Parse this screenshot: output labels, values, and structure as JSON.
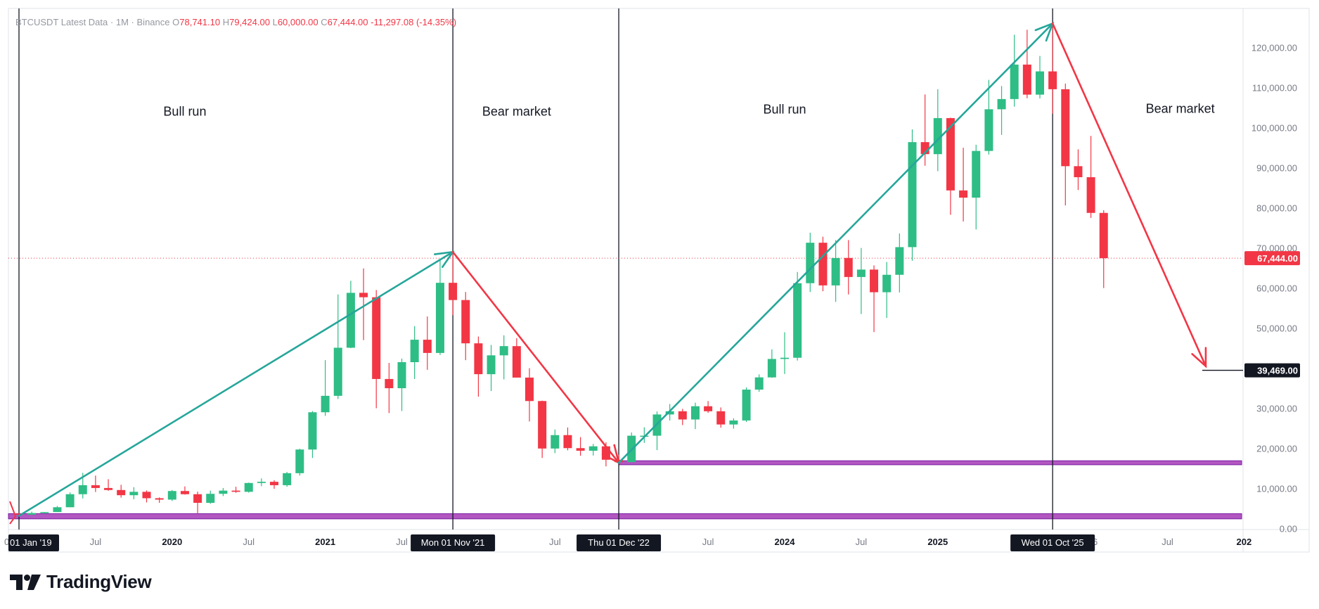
{
  "header": {
    "symbol": "BTCUSDT Latest Data",
    "separator": "·",
    "interval": "1M",
    "exchange": "Binance",
    "open_label": "O",
    "open": "78,741.10",
    "high_label": "H",
    "high": "79,424.00",
    "low_label": "L",
    "low": "60,000.00",
    "close_label": "C",
    "close": "67,444.00",
    "change": "-11,297.08 (-14.35%)"
  },
  "brand": {
    "name": "TradingView"
  },
  "colors": {
    "up": "#26a69a",
    "up_body": "#2ebd85",
    "down": "#f23645",
    "support": "#9c27b0",
    "grid": "#e0e3eb",
    "text": "#131722",
    "axis_text": "#787b86"
  },
  "chart_data": {
    "type": "candlestick",
    "interval": "monthly",
    "ylim": [
      0,
      130000
    ],
    "y_ticks": [
      0,
      10000,
      20000,
      30000,
      40000,
      50000,
      60000,
      70000,
      80000,
      90000,
      100000,
      110000,
      120000
    ],
    "y_tick_labels": [
      "0.00",
      "10,000.00",
      "20,000.00",
      "30,000.00",
      "40,000.00",
      "50,000.00",
      "60,000.00",
      "70,000.00",
      "80,000.00",
      "90,000.00",
      "100,000.00",
      "110,000.00",
      "120,000.00"
    ],
    "x_ticks": [
      {
        "month": "2019-01",
        "label": "01 Jan '19"
      },
      {
        "month": "2019-07",
        "label": "Jul"
      },
      {
        "month": "2020-01",
        "label": "2020"
      },
      {
        "month": "2020-07",
        "label": "Jul"
      },
      {
        "month": "2021-01",
        "label": "2021"
      },
      {
        "month": "2021-07",
        "label": "Jul"
      },
      {
        "month": "2022-07",
        "label": "Jul"
      },
      {
        "month": "2023-07",
        "label": "Jul"
      },
      {
        "month": "2024-01",
        "label": "2024"
      },
      {
        "month": "2024-07",
        "label": "Jul"
      },
      {
        "month": "2025-01",
        "label": "2025"
      },
      {
        "month": "2026-07",
        "label": "Jul"
      },
      {
        "month": "2027-01",
        "label": "202"
      }
    ],
    "x_highlight_labels": [
      {
        "month": "2021-11",
        "label": "Mon 01 Nov '21"
      },
      {
        "month": "2022-12",
        "label": "Thu 01 Dec '22"
      },
      {
        "month": "2025-10",
        "label": "Wed 01 Oct '25"
      }
    ],
    "x_partial_label": {
      "month": "2026-01",
      "label": "6"
    },
    "candles": [
      {
        "t": "2019-01",
        "o": 3700,
        "h": 3850,
        "l": 3350,
        "c": 3450
      },
      {
        "t": "2019-02",
        "o": 3450,
        "h": 4200,
        "l": 3400,
        "c": 3850
      },
      {
        "t": "2019-03",
        "o": 3850,
        "h": 4100,
        "l": 3700,
        "c": 4100
      },
      {
        "t": "2019-04",
        "o": 4100,
        "h": 5600,
        "l": 4100,
        "c": 5300
      },
      {
        "t": "2019-05",
        "o": 5300,
        "h": 9000,
        "l": 5300,
        "c": 8550
      },
      {
        "t": "2019-06",
        "o": 8550,
        "h": 13900,
        "l": 7500,
        "c": 10800
      },
      {
        "t": "2019-07",
        "o": 10800,
        "h": 13200,
        "l": 9100,
        "c": 10100
      },
      {
        "t": "2019-08",
        "o": 10100,
        "h": 12300,
        "l": 9400,
        "c": 9600
      },
      {
        "t": "2019-09",
        "o": 9600,
        "h": 10900,
        "l": 7700,
        "c": 8300
      },
      {
        "t": "2019-10",
        "o": 8300,
        "h": 10300,
        "l": 7300,
        "c": 9150
      },
      {
        "t": "2019-11",
        "o": 9150,
        "h": 9500,
        "l": 6500,
        "c": 7550
      },
      {
        "t": "2019-12",
        "o": 7550,
        "h": 7750,
        "l": 6400,
        "c": 7200
      },
      {
        "t": "2020-01",
        "o": 7200,
        "h": 9600,
        "l": 6850,
        "c": 9350
      },
      {
        "t": "2020-02",
        "o": 9350,
        "h": 10500,
        "l": 8450,
        "c": 8550
      },
      {
        "t": "2020-03",
        "o": 8550,
        "h": 9200,
        "l": 3800,
        "c": 6400
      },
      {
        "t": "2020-04",
        "o": 6400,
        "h": 9450,
        "l": 6150,
        "c": 8650
      },
      {
        "t": "2020-05",
        "o": 8650,
        "h": 10100,
        "l": 8100,
        "c": 9450
      },
      {
        "t": "2020-06",
        "o": 9450,
        "h": 10400,
        "l": 8900,
        "c": 9150
      },
      {
        "t": "2020-07",
        "o": 9150,
        "h": 11450,
        "l": 8950,
        "c": 11350
      },
      {
        "t": "2020-08",
        "o": 11350,
        "h": 12500,
        "l": 10550,
        "c": 11650
      },
      {
        "t": "2020-09",
        "o": 11650,
        "h": 12050,
        "l": 9900,
        "c": 10800
      },
      {
        "t": "2020-10",
        "o": 10800,
        "h": 14100,
        "l": 10400,
        "c": 13800
      },
      {
        "t": "2020-11",
        "o": 13800,
        "h": 19900,
        "l": 13200,
        "c": 19700
      },
      {
        "t": "2020-12",
        "o": 19700,
        "h": 29300,
        "l": 17600,
        "c": 29000
      },
      {
        "t": "2021-01",
        "o": 29000,
        "h": 42000,
        "l": 28100,
        "c": 33100
      },
      {
        "t": "2021-02",
        "o": 33100,
        "h": 58400,
        "l": 32300,
        "c": 45100
      },
      {
        "t": "2021-03",
        "o": 45100,
        "h": 61800,
        "l": 45000,
        "c": 58800
      },
      {
        "t": "2021-04",
        "o": 58800,
        "h": 64900,
        "l": 47000,
        "c": 57700
      },
      {
        "t": "2021-05",
        "o": 57700,
        "h": 59500,
        "l": 30000,
        "c": 37300
      },
      {
        "t": "2021-06",
        "o": 37300,
        "h": 41300,
        "l": 28800,
        "c": 35000
      },
      {
        "t": "2021-07",
        "o": 35000,
        "h": 42400,
        "l": 29300,
        "c": 41500
      },
      {
        "t": "2021-08",
        "o": 41500,
        "h": 50500,
        "l": 37300,
        "c": 47100
      },
      {
        "t": "2021-09",
        "o": 47100,
        "h": 52900,
        "l": 39600,
        "c": 43800
      },
      {
        "t": "2021-10",
        "o": 43800,
        "h": 67000,
        "l": 43300,
        "c": 61300
      },
      {
        "t": "2021-11",
        "o": 61300,
        "h": 69000,
        "l": 53200,
        "c": 57000
      },
      {
        "t": "2021-12",
        "o": 57000,
        "h": 59000,
        "l": 42000,
        "c": 46200
      },
      {
        "t": "2022-01",
        "o": 46200,
        "h": 47900,
        "l": 32900,
        "c": 38500
      },
      {
        "t": "2022-02",
        "o": 38500,
        "h": 45800,
        "l": 34300,
        "c": 43200
      },
      {
        "t": "2022-03",
        "o": 43200,
        "h": 48200,
        "l": 37200,
        "c": 45500
      },
      {
        "t": "2022-04",
        "o": 45500,
        "h": 47500,
        "l": 37700,
        "c": 37650
      },
      {
        "t": "2022-05",
        "o": 37650,
        "h": 40000,
        "l": 26700,
        "c": 31800
      },
      {
        "t": "2022-06",
        "o": 31800,
        "h": 31900,
        "l": 17600,
        "c": 19950
      },
      {
        "t": "2022-07",
        "o": 19950,
        "h": 24700,
        "l": 18800,
        "c": 23300
      },
      {
        "t": "2022-08",
        "o": 23300,
        "h": 25200,
        "l": 19500,
        "c": 20050
      },
      {
        "t": "2022-09",
        "o": 20050,
        "h": 22800,
        "l": 18150,
        "c": 19400
      },
      {
        "t": "2022-10",
        "o": 19400,
        "h": 21100,
        "l": 18200,
        "c": 20500
      },
      {
        "t": "2022-11",
        "o": 20500,
        "h": 21500,
        "l": 15500,
        "c": 17150
      },
      {
        "t": "2022-12",
        "o": 17150,
        "h": 18400,
        "l": 16300,
        "c": 16550
      },
      {
        "t": "2023-01",
        "o": 16550,
        "h": 23950,
        "l": 16500,
        "c": 23150
      },
      {
        "t": "2023-02",
        "o": 23150,
        "h": 25250,
        "l": 21350,
        "c": 23150
      },
      {
        "t": "2023-03",
        "o": 23150,
        "h": 29200,
        "l": 19550,
        "c": 28450
      },
      {
        "t": "2023-04",
        "o": 28450,
        "h": 31050,
        "l": 26950,
        "c": 29250
      },
      {
        "t": "2023-05",
        "o": 29250,
        "h": 29850,
        "l": 25800,
        "c": 27200
      },
      {
        "t": "2023-06",
        "o": 27200,
        "h": 31400,
        "l": 24800,
        "c": 30500
      },
      {
        "t": "2023-07",
        "o": 30500,
        "h": 31800,
        "l": 28850,
        "c": 29250
      },
      {
        "t": "2023-08",
        "o": 29250,
        "h": 30200,
        "l": 25150,
        "c": 25950
      },
      {
        "t": "2023-09",
        "o": 25950,
        "h": 27500,
        "l": 24900,
        "c": 26950
      },
      {
        "t": "2023-10",
        "o": 26950,
        "h": 35200,
        "l": 26550,
        "c": 34650
      },
      {
        "t": "2023-11",
        "o": 34650,
        "h": 38450,
        "l": 34100,
        "c": 37700
      },
      {
        "t": "2023-12",
        "o": 37700,
        "h": 44700,
        "l": 37600,
        "c": 42300
      },
      {
        "t": "2024-01",
        "o": 42300,
        "h": 48950,
        "l": 38550,
        "c": 42600
      },
      {
        "t": "2024-02",
        "o": 42600,
        "h": 64000,
        "l": 41900,
        "c": 61200
      },
      {
        "t": "2024-03",
        "o": 61200,
        "h": 73800,
        "l": 59000,
        "c": 71300
      },
      {
        "t": "2024-04",
        "o": 71300,
        "h": 72800,
        "l": 59200,
        "c": 60650
      },
      {
        "t": "2024-05",
        "o": 60650,
        "h": 71950,
        "l": 56550,
        "c": 67500
      },
      {
        "t": "2024-06",
        "o": 67500,
        "h": 71950,
        "l": 58400,
        "c": 62750
      },
      {
        "t": "2024-07",
        "o": 62750,
        "h": 70000,
        "l": 53500,
        "c": 64600
      },
      {
        "t": "2024-08",
        "o": 64600,
        "h": 65650,
        "l": 49000,
        "c": 58950
      },
      {
        "t": "2024-09",
        "o": 58950,
        "h": 66500,
        "l": 52550,
        "c": 63300
      },
      {
        "t": "2024-10",
        "o": 63300,
        "h": 73600,
        "l": 58900,
        "c": 70200
      },
      {
        "t": "2024-11",
        "o": 70200,
        "h": 99600,
        "l": 66800,
        "c": 96400
      },
      {
        "t": "2024-12",
        "o": 96400,
        "h": 108300,
        "l": 90500,
        "c": 93400
      },
      {
        "t": "2025-01",
        "o": 93400,
        "h": 109600,
        "l": 89150,
        "c": 102400
      },
      {
        "t": "2025-02",
        "o": 102400,
        "h": 102500,
        "l": 78250,
        "c": 84350
      },
      {
        "t": "2025-03",
        "o": 84350,
        "h": 95000,
        "l": 76600,
        "c": 82550
      },
      {
        "t": "2025-04",
        "o": 82550,
        "h": 95750,
        "l": 74600,
        "c": 94200
      },
      {
        "t": "2025-05",
        "o": 94200,
        "h": 111950,
        "l": 93300,
        "c": 104600
      },
      {
        "t": "2025-06",
        "o": 104600,
        "h": 110400,
        "l": 98200,
        "c": 107150
      },
      {
        "t": "2025-07",
        "o": 107150,
        "h": 123200,
        "l": 105250,
        "c": 115750
      },
      {
        "t": "2025-08",
        "o": 115750,
        "h": 124450,
        "l": 107350,
        "c": 108250
      },
      {
        "t": "2025-09",
        "o": 108250,
        "h": 117900,
        "l": 107300,
        "c": 114050
      },
      {
        "t": "2025-10",
        "o": 114050,
        "h": 126200,
        "l": 103500,
        "c": 109600
      },
      {
        "t": "2025-11",
        "o": 109600,
        "h": 111000,
        "l": 80600,
        "c": 90400
      },
      {
        "t": "2025-12",
        "o": 90400,
        "h": 94600,
        "l": 84450,
        "c": 87650
      },
      {
        "t": "2026-01",
        "o": 87650,
        "h": 97950,
        "l": 77500,
        "c": 78741
      },
      {
        "t": "2026-02",
        "o": 78741,
        "h": 79424,
        "l": 60000,
        "c": 67444
      }
    ],
    "current_price": {
      "value": 67444,
      "label": "67,444.00"
    },
    "target_price": {
      "value": 39469,
      "label": "39,469.00"
    },
    "vertical_lines": [
      "2019-01",
      "2021-11",
      "2022-12",
      "2025-10"
    ],
    "support_zones": [
      {
        "from": 2400,
        "to": 3700,
        "start": "2018-12",
        "end": "2027-01"
      },
      {
        "from": 15900,
        "to": 16900,
        "start": "2022-12",
        "end": "2027-01"
      }
    ],
    "trend_arrows": [
      {
        "from": {
          "t": "2019-01",
          "v": 3150
        },
        "to": {
          "t": "2021-11",
          "v": 69000
        },
        "color": "up"
      },
      {
        "from": {
          "t": "2021-11",
          "v": 69000
        },
        "to": {
          "t": "2022-12",
          "v": 16400
        },
        "color": "down"
      },
      {
        "from": {
          "t": "2022-12",
          "v": 16400
        },
        "to": {
          "t": "2025-10",
          "v": 126000
        },
        "color": "up"
      },
      {
        "from": {
          "t": "2025-10",
          "v": 126000
        },
        "to": {
          "t": "2026-10",
          "v": 40500
        },
        "color": "down"
      }
    ],
    "annotations": [
      {
        "text": "Bull run",
        "t": "2020-02",
        "v": 103000
      },
      {
        "text": "Bear market",
        "t": "2022-04",
        "v": 103000
      },
      {
        "text": "Bull run",
        "t": "2024-01",
        "v": 103500
      },
      {
        "text": "Bear market",
        "t": "2026-08",
        "v": 103700
      }
    ]
  }
}
